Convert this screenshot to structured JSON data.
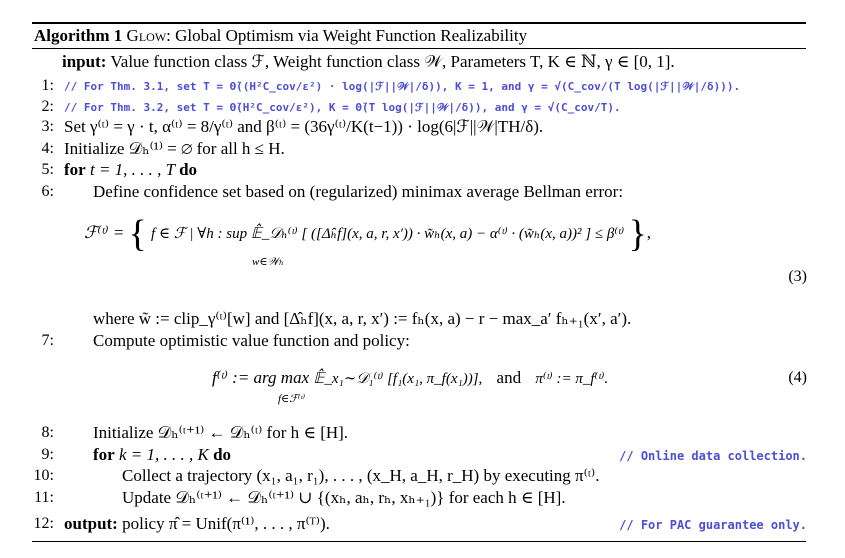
{
  "algorithm": {
    "label": "Algorithm 1",
    "name": "Glow",
    "title_rest": ": Global Optimism via Weight Function Realizability"
  },
  "input": {
    "keyword": "input:",
    "text": "Value function class ℱ, Weight function class 𝒲, Parameters T, K ∈ ℕ, γ ∈ [0, 1]."
  },
  "lines": [
    {
      "num": "1:",
      "comment": "// For  Thm. 3.1, set T = Θ̃((H²C_cov/ε²) · log(|ℱ||𝒲|/δ)),  K = 1, and γ = √(C_cov/(T log(|ℱ||𝒲|/δ)))."
    },
    {
      "num": "2:",
      "comment": "// For  Thm. 3.2, set T = Θ̃(H²C_cov/ε²),  K = Θ̃(T log(|ℱ||𝒲|/δ)),  and γ = √(C_cov/T)."
    },
    {
      "num": "3:",
      "text": "Set γ⁽ᵗ⁾ = γ · t, α⁽ᵗ⁾ = 8/γ⁽ᵗ⁾ and β⁽ᵗ⁾ = (36γ⁽ᵗ⁾/K(t−1)) · log(6|ℱ||𝒲|TH/δ)."
    },
    {
      "num": "4:",
      "text": "Initialize 𝒟ₕ⁽¹⁾ = ∅ for all h ≤ H."
    },
    {
      "num": "5:",
      "keyword": "for",
      "text": " t = 1, . . . , T ",
      "keyword2": "do"
    },
    {
      "num": "6:",
      "text": "Define confidence set based on (regularized) minimax average Bellman error:"
    },
    {
      "num": "",
      "text": "where w̃ := clip_γ⁽ᵗ⁾[w] and [Δ̂ₕf](x, a, r, x′) := fₕ(x, a) − r − max_a′ fₕ₊₁(x′, a′)."
    },
    {
      "num": "7:",
      "text": "Compute optimistic value function and policy:"
    },
    {
      "num": "8:",
      "text": "Initialize 𝒟ₕ⁽ᵗ⁺¹⁾ ← 𝒟ₕ⁽ᵗ⁾ for h ∈ [H]."
    },
    {
      "num": "9:",
      "keyword": "for",
      "text": " k = 1, . . . , K ",
      "keyword2": "do",
      "comment": "// Online data collection."
    },
    {
      "num": "10:",
      "text": "Collect a trajectory (x₁, a₁, r₁), . . . , (x_H, a_H, r_H) by executing π⁽ᵗ⁾."
    },
    {
      "num": "11:",
      "text": "Update 𝒟ₕ⁽ᵗ⁺¹⁾ ← 𝒟ₕ⁽ᵗ⁺¹⁾ ∪ {(xₕ, aₕ, rₕ, xₕ₊₁)} for each h ∈ [H]."
    },
    {
      "num": "12:",
      "keyword": "output:",
      "text": " policy π̂ = Unif(π⁽¹⁾, . . . , π⁽ᵀ⁾).",
      "comment": "// For PAC guarantee only."
    }
  ],
  "equations": {
    "eq3": {
      "lhs": "ℱ⁽ᵗ⁾ =",
      "body": "f ∈ ℱ | ∀h : sup   𝔼̂_𝒟ₕ⁽ᵗ⁾ [ ([Δ̂ₕf](x, a, r, x′)) · w̃ₕ(x, a) − α⁽ᵗ⁾ · (w̃ₕ(x, a))² ] ≤ β⁽ᵗ⁾",
      "sub": "w∈𝒲ₕ",
      "number": "(3)"
    },
    "eq4": {
      "lhs": "f⁽ᵗ⁾ := arg max",
      "rhs": "𝔼̂_x₁∼𝒟₁⁽ᵗ⁾ [f₁(x₁, π_f(x₁))],",
      "and": "and",
      "pi": "π⁽ᵗ⁾ := π_f⁽ᵗ⁾.",
      "sub": "f∈ℱ⁽ᵗ⁾",
      "number": "(4)"
    }
  }
}
